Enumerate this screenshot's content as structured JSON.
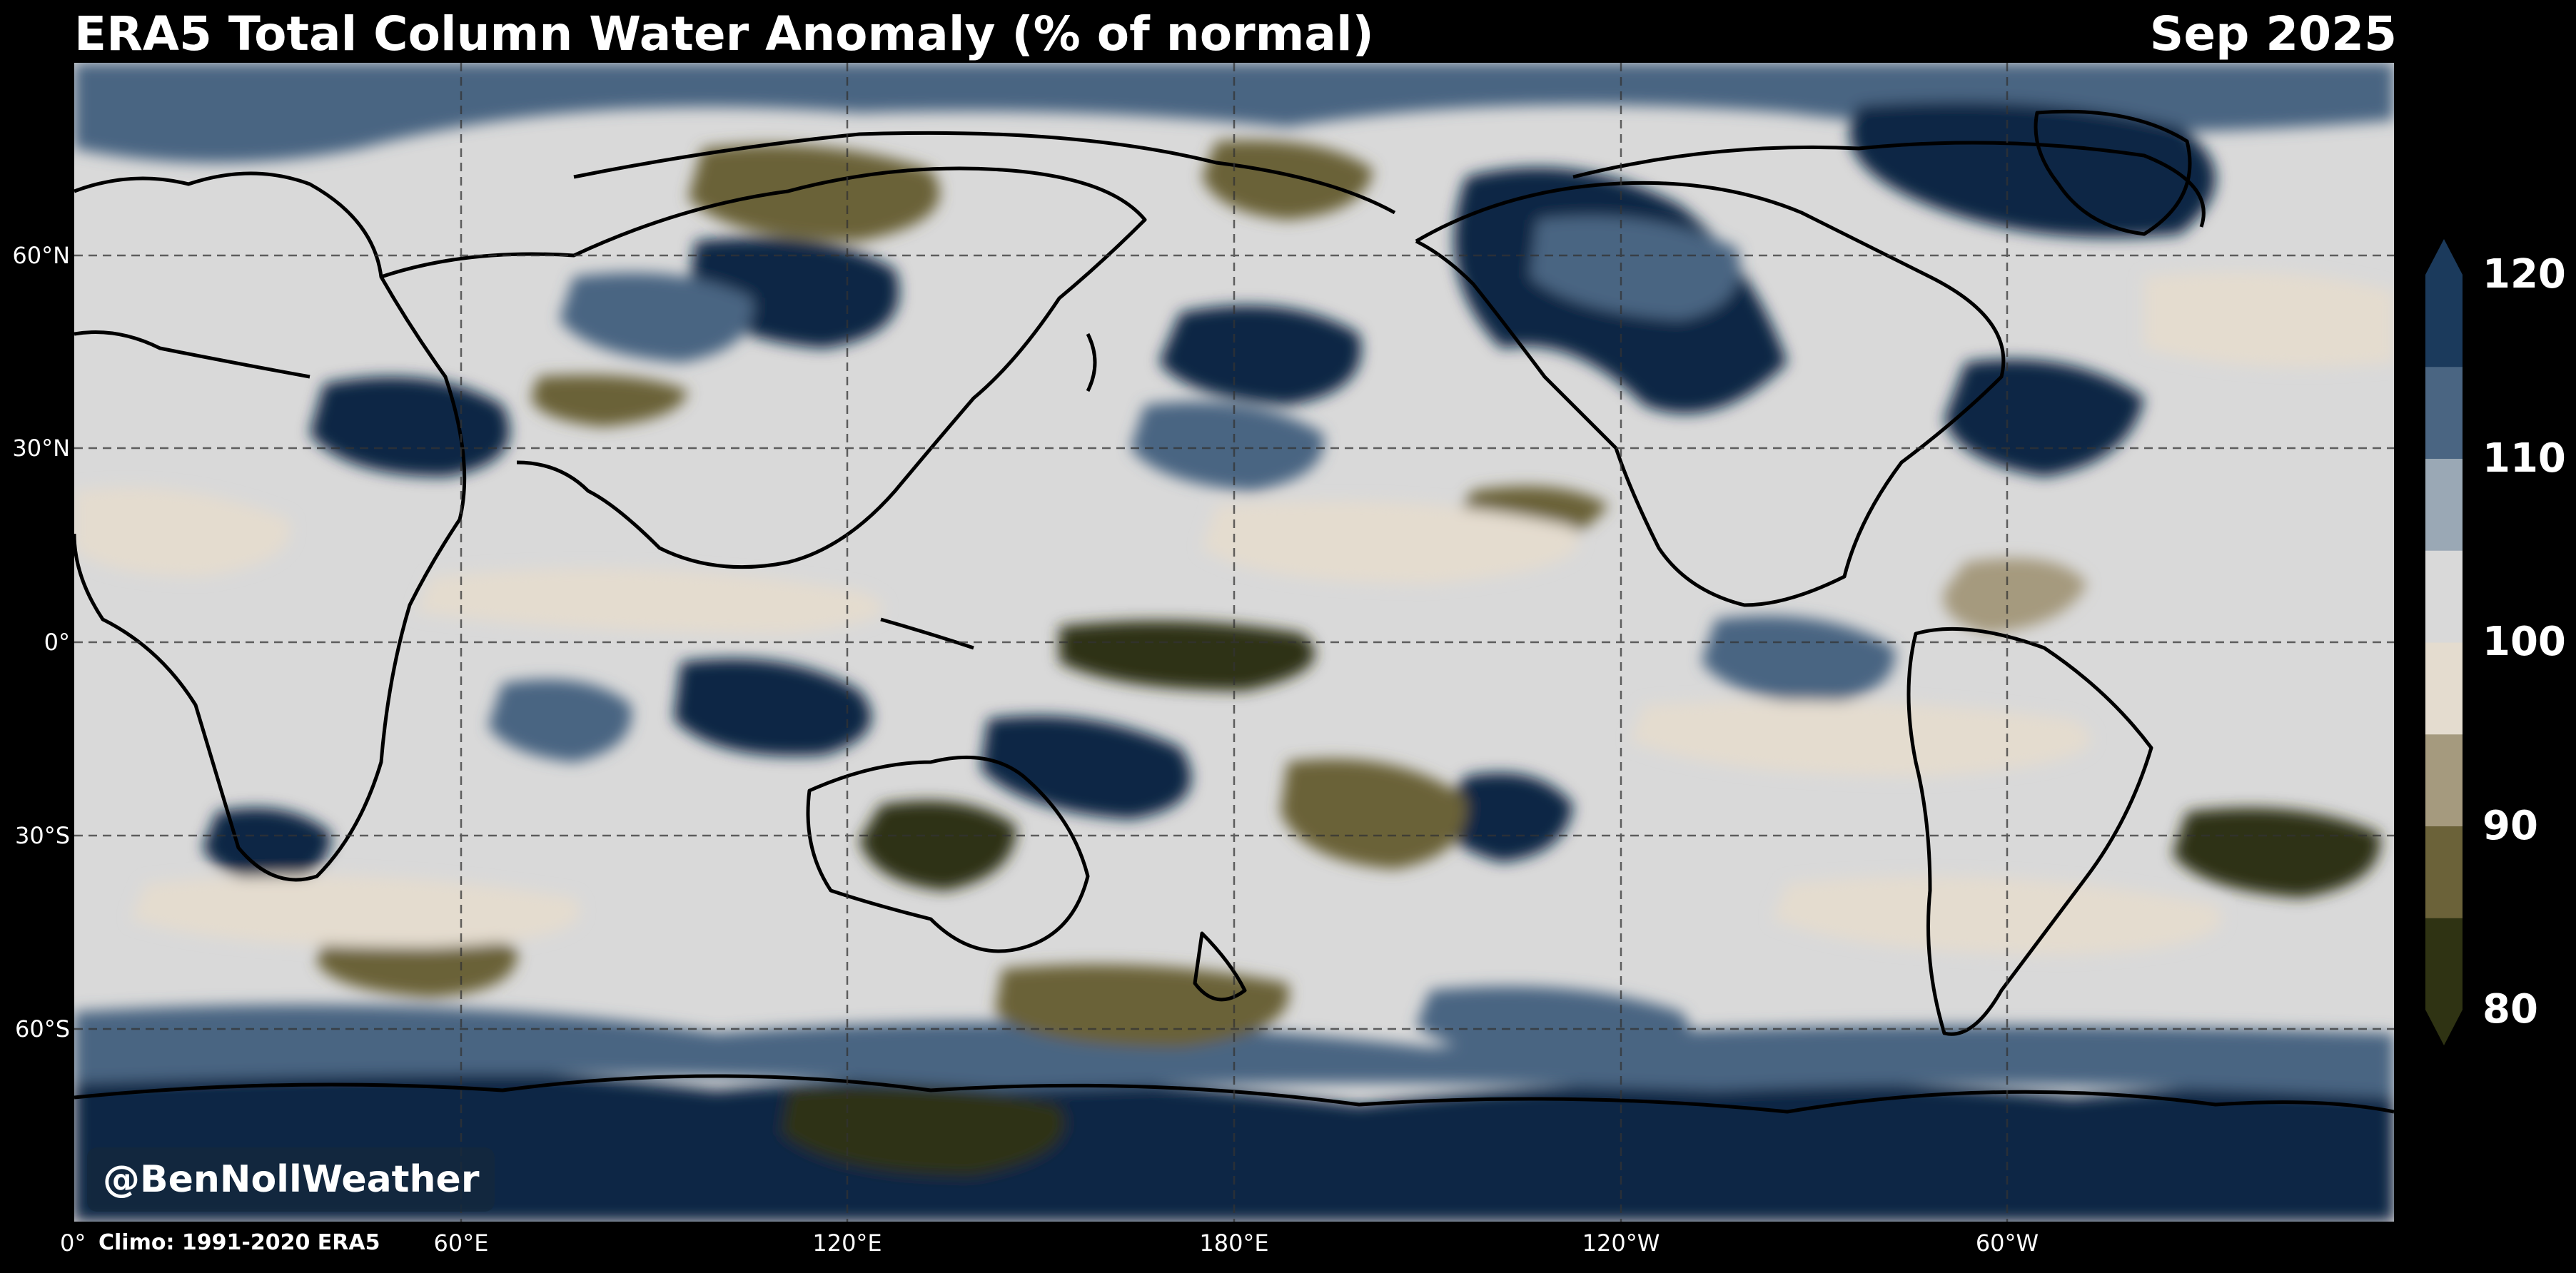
{
  "header": {
    "title": "ERA5 Total Column Water Anomaly (% of normal)",
    "date": "Sep 2025"
  },
  "map": {
    "lat_labels": [
      "60°N",
      "30°N",
      "0°",
      "30°S",
      "60°S"
    ],
    "lon_labels": [
      "0°",
      "60°E",
      "120°E",
      "180°E",
      "120°W",
      "60°W"
    ],
    "gridlines": "dashed",
    "colors": {
      "land_outline": "#000000",
      "ocean_base": "#d9d9d9",
      "wet_strong": "#0b2545",
      "wet": "#4a6582",
      "wet_light": "#9aa8b5",
      "dry_light": "#e4dccf",
      "dry": "#a59a7e",
      "dry_strong": "#6b6239",
      "dry_extreme": "#2f3313"
    }
  },
  "colorbar": {
    "tick_labels": [
      "120",
      "110",
      "100",
      "90",
      "80"
    ],
    "min": 80,
    "max": 120,
    "colors": [
      "#2f3313",
      "#6b6239",
      "#a59a7e",
      "#e4dccf",
      "#d9d9d9",
      "#9aa8b5",
      "#4a6582",
      "#1b3a5c"
    ],
    "extend": "both"
  },
  "footer": {
    "climo_note": "Climo: 1991-2020 ERA5",
    "watermark": "@BenNollWeather"
  }
}
